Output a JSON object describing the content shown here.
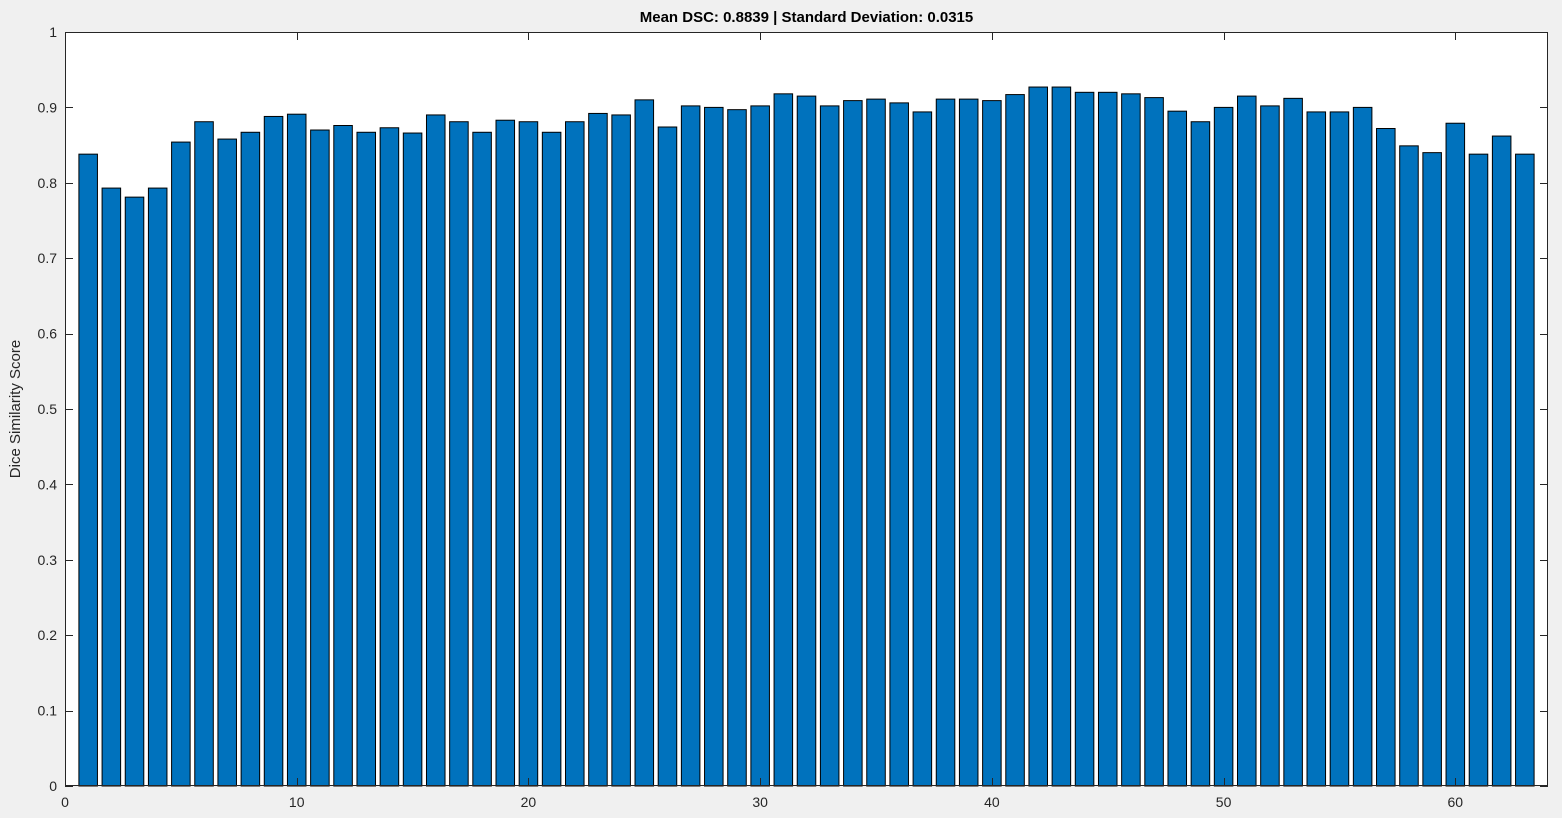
{
  "figure": {
    "background": "#f0f0f0"
  },
  "chart_data": {
    "type": "bar",
    "title": "Mean DSC: 0.8839 | Standard Deviation: 0.0315",
    "xlabel": "",
    "ylabel": "Dice Similarity Score",
    "xlim": [
      0,
      64
    ],
    "ylim": [
      0,
      1
    ],
    "x_ticks": [
      0,
      10,
      20,
      30,
      40,
      50,
      60
    ],
    "y_ticks": [
      0,
      0.1,
      0.2,
      0.3,
      0.4,
      0.5,
      0.6,
      0.7,
      0.8,
      0.9,
      1
    ],
    "grid": false,
    "bar_color": "#0072bd",
    "edge_color": "#000000",
    "axes_background": "#ffffff",
    "x": [
      1,
      2,
      3,
      4,
      5,
      6,
      7,
      8,
      9,
      10,
      11,
      12,
      13,
      14,
      15,
      16,
      17,
      18,
      19,
      20,
      21,
      22,
      23,
      24,
      25,
      26,
      27,
      28,
      29,
      30,
      31,
      32,
      33,
      34,
      35,
      36,
      37,
      38,
      39,
      40,
      41,
      42,
      43,
      44,
      45,
      46,
      47,
      48,
      49,
      50,
      51,
      52,
      53,
      54,
      55,
      56,
      57,
      58,
      59,
      60,
      61,
      62,
      63
    ],
    "values": [
      0.838,
      0.793,
      0.781,
      0.793,
      0.854,
      0.881,
      0.858,
      0.867,
      0.888,
      0.891,
      0.87,
      0.876,
      0.867,
      0.873,
      0.866,
      0.89,
      0.881,
      0.867,
      0.883,
      0.881,
      0.867,
      0.881,
      0.892,
      0.89,
      0.91,
      0.874,
      0.902,
      0.9,
      0.897,
      0.902,
      0.918,
      0.915,
      0.902,
      0.909,
      0.911,
      0.906,
      0.894,
      0.911,
      0.911,
      0.909,
      0.917,
      0.927,
      0.927,
      0.92,
      0.92,
      0.918,
      0.913,
      0.895,
      0.881,
      0.9,
      0.915,
      0.902,
      0.912,
      0.894,
      0.894,
      0.9,
      0.872,
      0.849,
      0.84,
      0.879,
      0.838,
      0.862,
      0.838
    ]
  }
}
